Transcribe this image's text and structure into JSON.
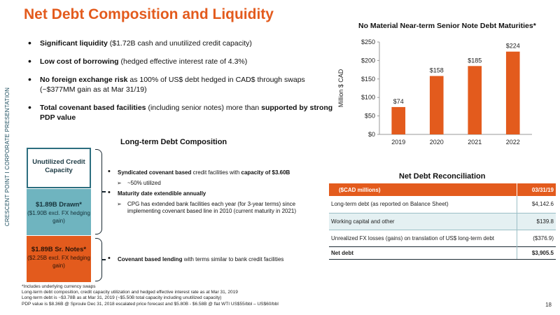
{
  "side_label": "CRESCENT POINT   I   CORPORATE PRESENTATION",
  "title": "Net Debt Composition and Liquidity",
  "bullets": [
    {
      "bold": "Significant liquidity",
      "rest": " ($1.72B cash and unutilized credit capacity)",
      "bold2": "",
      "rest2": ""
    },
    {
      "bold": "Low cost of borrowing",
      "rest": " (hedged effective interest rate of 4.3%)",
      "bold2": "",
      "rest2": ""
    },
    {
      "bold": "No foreign exchange risk",
      "rest": " as 100% of US$ debt hedged in CAD$ through swaps (~$377MM gain as at Mar 31/19)",
      "bold2": "",
      "rest2": ""
    },
    {
      "bold": "Total covenant based facilities",
      "rest": " (including senior notes) more than ",
      "bold2": "supported by strong PDP value",
      "rest2": ""
    }
  ],
  "ltd": {
    "title": "Long-term Debt Composition",
    "credit": {
      "main": "Unutilized Credit Capacity",
      "sub": ""
    },
    "drawn": {
      "main": "$1.89B Drawn*",
      "sub": "($1.90B excl. FX hedging gain)"
    },
    "notes": {
      "main": "$1.89B Sr. Notes*",
      "sub": "($2.25B excl. FX hedging gain)"
    }
  },
  "composition": {
    "syndicated_b1": "Syndicated covenant based",
    "syndicated_t1": " credit facilities with ",
    "syndicated_b2": "capacity of $3.60B",
    "utilized": "~50% utilized",
    "maturity": "Maturity date extendible annually",
    "extension": "CPG has extended bank facilities each year (for 3-year terms) since implementing covenant based line in 2010 (current maturity in 2021)",
    "covenant_b": "Covenant based lending",
    "covenant_t": " with terms similar to bank credit facilities"
  },
  "chart_data": {
    "type": "bar",
    "title": "No Material Near-term Senior Note Debt Maturities*",
    "categories": [
      "2019",
      "2020",
      "2021",
      "2022"
    ],
    "values": [
      74,
      158,
      185,
      224
    ],
    "value_labels": [
      "$74",
      "$158",
      "$185",
      "$224"
    ],
    "ylabel": "Million $ CAD",
    "ylim": [
      0,
      250
    ],
    "yticks": [
      0,
      50,
      100,
      150,
      200,
      250
    ],
    "ytick_labels": [
      "$0",
      "$50",
      "$100",
      "$150",
      "$200",
      "$250"
    ],
    "bar_color": "#e35b1d",
    "grid": false
  },
  "net_debt": {
    "title": "Net Debt Reconciliation",
    "header": [
      "($CAD millions)",
      "03/31/19"
    ],
    "rows": [
      {
        "label": "Long-term debt (as reported on Balance Sheet)",
        "value": "$4,142.6"
      },
      {
        "label": "Working capital and other",
        "value": "$139.8"
      },
      {
        "label": "Unrealized FX losses (gains) on translation of US$ long-term debt",
        "value": "($376.9)"
      }
    ],
    "total": {
      "label": "Net debt",
      "value": "$3,905.5"
    }
  },
  "footnotes": [
    "*Includes underlying currency swaps",
    "Long-term debt composition, credit capacity utilization and hedged effective interest rate as at Mar 31, 2019",
    "Long-term debt is ~$3.78B as at Mar 31, 2019 (~$5.50B total capacity including unutilized capacity)",
    "PDP value is $8.36B @ Sproule Dec 31, 2018 escalated price forecast and $5.80B - $6.58B @ flat WTI US$55/bbl – US$60/bbl"
  ],
  "page_number": "18",
  "colors": {
    "accent": "#e35b1d",
    "teal": "#6fb4bf",
    "teal_dark": "#2c6e7f",
    "table_shade": "#e4f0f2"
  }
}
